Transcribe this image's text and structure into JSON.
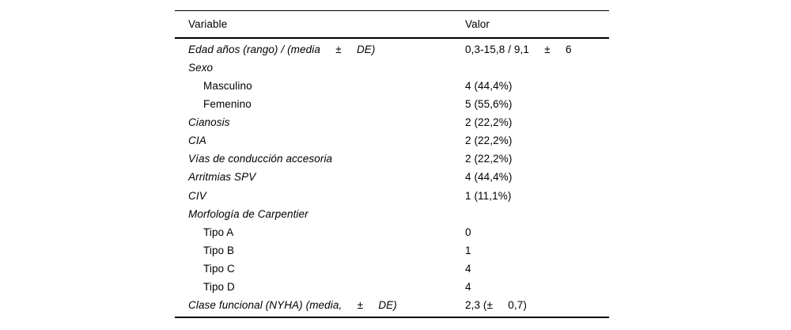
{
  "table": {
    "columns": [
      {
        "label": "Variable"
      },
      {
        "label": "Valor"
      }
    ],
    "rows": [
      {
        "label": "Edad años (rango) / (media     ±     DE)",
        "value": "0,3-15,8 / 9,1     ±     6",
        "italic": true,
        "indent": false
      },
      {
        "label": "Sexo",
        "value": "",
        "italic": true,
        "indent": false
      },
      {
        "label": "Masculino",
        "value": "4 (44,4%)",
        "italic": false,
        "indent": true
      },
      {
        "label": "Femenino",
        "value": "5 (55,6%)",
        "italic": false,
        "indent": true
      },
      {
        "label": "Cianosis",
        "value": "2 (22,2%)",
        "italic": true,
        "indent": false
      },
      {
        "label": "CIA",
        "value": "2 (22,2%)",
        "italic": true,
        "indent": false
      },
      {
        "label": "Vías de conducción accesoria",
        "value": "2 (22,2%)",
        "italic": true,
        "indent": false
      },
      {
        "label": "Arritmias SPV",
        "value": "4 (44,4%)",
        "italic": true,
        "indent": false
      },
      {
        "label": "CIV",
        "value": "1 (11,1%)",
        "italic": true,
        "indent": false
      },
      {
        "label": "Morfología de Carpentier",
        "value": "",
        "italic": true,
        "indent": false
      },
      {
        "label": "Tipo A",
        "value": "0",
        "italic": false,
        "indent": true
      },
      {
        "label": "Tipo B",
        "value": "1",
        "italic": false,
        "indent": true
      },
      {
        "label": "Tipo C",
        "value": "4",
        "italic": false,
        "indent": true
      },
      {
        "label": "Tipo D",
        "value": "4",
        "italic": false,
        "indent": true
      },
      {
        "label": "Clase funcional (NYHA) (media,     ±     DE)",
        "value": "2,3 (±     0,7)",
        "italic": true,
        "indent": false
      }
    ],
    "colors": {
      "text": "#000000",
      "background": "#ffffff",
      "rule": "#000000"
    }
  }
}
